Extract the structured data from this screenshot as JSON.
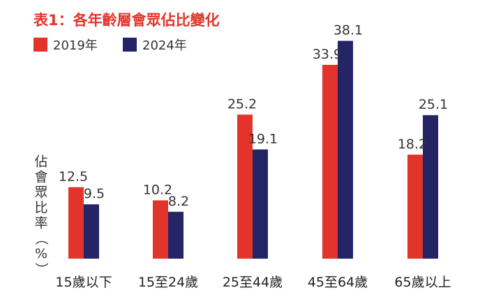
{
  "chart_data": {
    "type": "bar",
    "title": "表1：各年齡層會眾佔比變化",
    "ylabel": "佔會眾比率（%）",
    "categories": [
      "15歲以下",
      "15至24歲",
      "25至44歲",
      "45至64歲",
      "65歲以上"
    ],
    "series": [
      {
        "name": "2019年",
        "values": [
          12.5,
          10.2,
          25.2,
          33.9,
          18.2
        ]
      },
      {
        "name": "2024年",
        "values": [
          9.5,
          8.2,
          19.1,
          38.1,
          25.1
        ]
      }
    ],
    "ylim": [
      0,
      40
    ],
    "grid": false,
    "legend": "top-left"
  },
  "colors": {
    "series_2019": "#e2342b",
    "series_2024": "#232567",
    "title": "#e2342b"
  }
}
